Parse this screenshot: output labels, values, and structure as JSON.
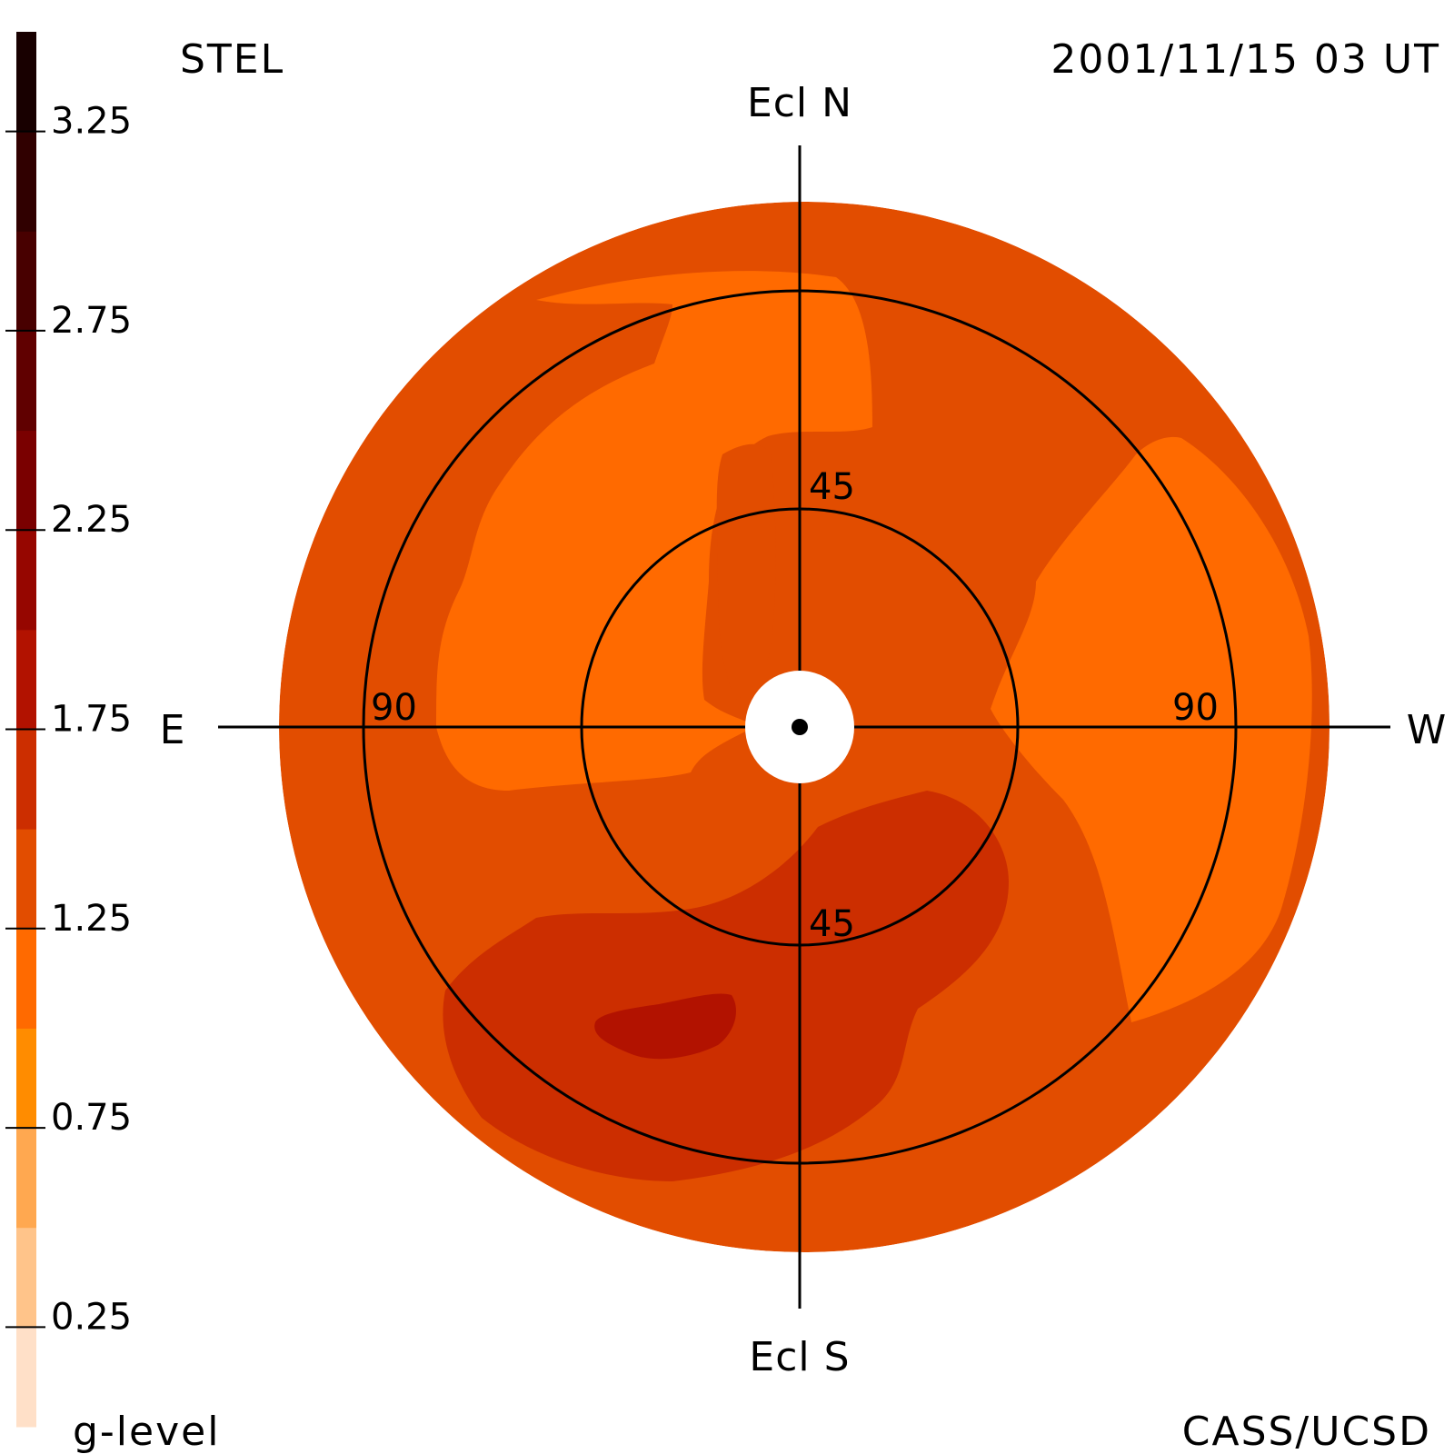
{
  "header": {
    "instrument": "STEL",
    "timestamp": "2001/11/15 03 UT"
  },
  "footer": {
    "credit": "CASS/UCSD"
  },
  "colors": {
    "background": "#ffffff",
    "axes": "#000000"
  },
  "chart_data": {
    "type": "heatmap",
    "projection": "sky map centered on the Sun (polar, elongation in degrees)",
    "directions": {
      "top": "Ecl N",
      "bottom": "Ecl S",
      "left": "E",
      "right": "W"
    },
    "rings": [
      {
        "elongation": 45,
        "labels": [
          "45",
          "45"
        ]
      },
      {
        "elongation": 90,
        "labels": [
          "90",
          "90"
        ]
      }
    ],
    "colorbar": {
      "label": "g-level",
      "range": [
        0,
        3.5
      ],
      "ticks": [
        "0.25",
        "0.75",
        "1.25",
        "1.75",
        "2.25",
        "2.75",
        "3.25"
      ],
      "levels": [
        {
          "from": 0.0,
          "to": 0.25,
          "color": "#ffe0c8"
        },
        {
          "from": 0.25,
          "to": 0.5,
          "color": "#ffc48a"
        },
        {
          "from": 0.5,
          "to": 0.75,
          "color": "#ffa850"
        },
        {
          "from": 0.75,
          "to": 1.0,
          "color": "#ff8c00"
        },
        {
          "from": 1.0,
          "to": 1.25,
          "color": "#ff6a00"
        },
        {
          "from": 1.25,
          "to": 1.5,
          "color": "#e24d00"
        },
        {
          "from": 1.5,
          "to": 1.75,
          "color": "#cc2e00"
        },
        {
          "from": 1.75,
          "to": 2.0,
          "color": "#b21200"
        },
        {
          "from": 2.0,
          "to": 2.25,
          "color": "#960600"
        },
        {
          "from": 2.25,
          "to": 2.5,
          "color": "#7a0000"
        },
        {
          "from": 2.5,
          "to": 2.75,
          "color": "#600000"
        },
        {
          "from": 2.75,
          "to": 3.0,
          "color": "#480000"
        },
        {
          "from": 3.0,
          "to": 3.25,
          "color": "#300000"
        },
        {
          "from": 3.25,
          "to": 3.5,
          "color": "#180000"
        }
      ]
    },
    "background_level": 1.375,
    "regions": [
      {
        "name": "northwest-bright-arc",
        "level": 1.125
      },
      {
        "name": "central-north-tongue",
        "level": 1.125
      },
      {
        "name": "west-bright-arc",
        "level": 1.125
      },
      {
        "name": "north-center-darker",
        "level": 1.375
      },
      {
        "name": "south-dark-band",
        "level": 1.625
      },
      {
        "name": "south-core",
        "level": 1.875
      }
    ]
  }
}
